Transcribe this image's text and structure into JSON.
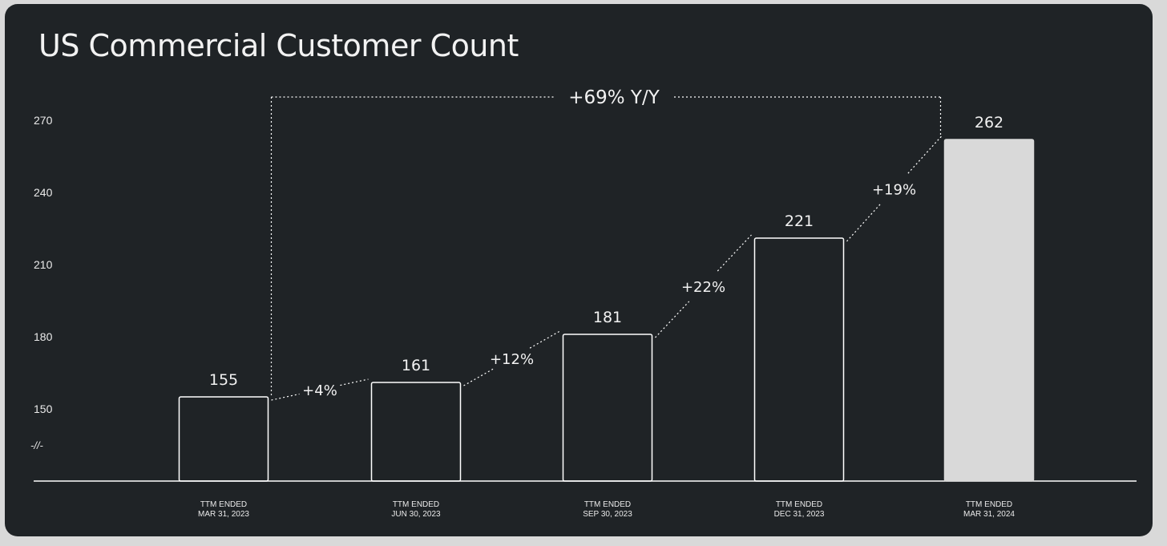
{
  "chart_data": {
    "type": "bar",
    "title": "US Commercial Customer Count",
    "categories": [
      [
        "TTM ENDED",
        "MAR 31, 2023"
      ],
      [
        "TTM ENDED",
        "JUN 30, 2023"
      ],
      [
        "TTM ENDED",
        "SEP 30, 2023"
      ],
      [
        "TTM ENDED",
        "DEC 31, 2023"
      ],
      [
        "TTM ENDED",
        "MAR 31, 2024"
      ]
    ],
    "values": [
      155,
      161,
      181,
      221,
      262
    ],
    "value_labels": [
      "155",
      "161",
      "181",
      "221",
      "262"
    ],
    "y_ticks": [
      150,
      180,
      210,
      240,
      270
    ],
    "axis_break_label": "-//-",
    "ylim": [
      120,
      270
    ],
    "growth_labels": [
      "+4%",
      "+12%",
      "+22%",
      "+19%"
    ],
    "yoy_label": "+69% Y/Y",
    "highlight_index": 4,
    "colors": {
      "background": "#1f2326",
      "bar_outline": "#ffffff",
      "highlight_bar": "#d9d9d9",
      "text": "#f2f2f2"
    },
    "xlabel": "",
    "ylabel": "",
    "grid": false
  }
}
